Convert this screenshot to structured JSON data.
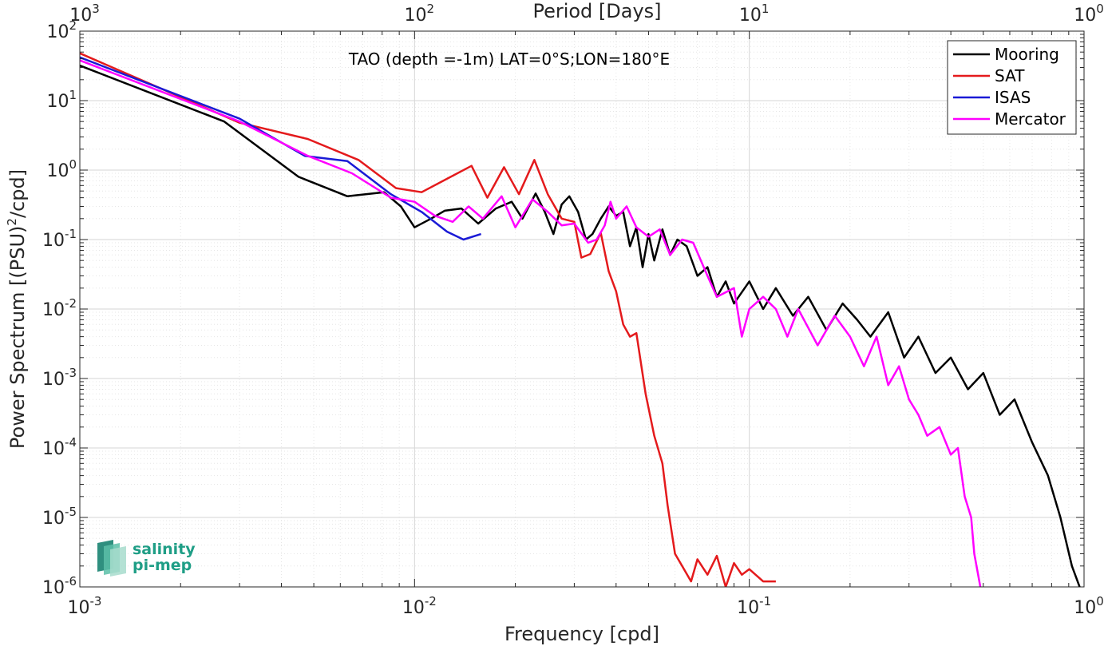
{
  "chart_data": {
    "type": "line",
    "title": "TAO (depth =-1m) LAT=0°S;LON=180°E",
    "xlabel": "Frequency [cpd]",
    "ylabel": "Power Spectrum [(PSU)",
    "ylabel_sup": "2",
    "ylabel_tail": "/cpd]",
    "top_xlabel": "Period [Days]",
    "xscale": "log",
    "yscale": "log",
    "xlim": [
      0.001,
      1
    ],
    "ylim": [
      1e-06,
      100
    ],
    "grid": true,
    "legend_position": "top-right",
    "x_ticks": [
      {
        "value": 0.001,
        "base": "10",
        "exp": "-3"
      },
      {
        "value": 0.01,
        "base": "10",
        "exp": "-2"
      },
      {
        "value": 0.1,
        "base": "10",
        "exp": "-1"
      },
      {
        "value": 1,
        "base": "10",
        "exp": "0"
      }
    ],
    "top_ticks": [
      {
        "value": 0.001,
        "base": "10",
        "exp": "3"
      },
      {
        "value": 0.01,
        "base": "10",
        "exp": "2"
      },
      {
        "value": 0.1,
        "base": "10",
        "exp": "1"
      },
      {
        "value": 1,
        "base": "10",
        "exp": "0"
      }
    ],
    "y_ticks": [
      {
        "value": 100,
        "base": "10",
        "exp": "2"
      },
      {
        "value": 10,
        "base": "10",
        "exp": "1"
      },
      {
        "value": 1,
        "base": "10",
        "exp": "0"
      },
      {
        "value": 0.1,
        "base": "10",
        "exp": "-1"
      },
      {
        "value": 0.01,
        "base": "10",
        "exp": "-2"
      },
      {
        "value": 0.001,
        "base": "10",
        "exp": "-3"
      },
      {
        "value": 0.0001,
        "base": "10",
        "exp": "-4"
      },
      {
        "value": 1e-05,
        "base": "10",
        "exp": "-5"
      },
      {
        "value": 1e-06,
        "base": "10",
        "exp": "-6"
      }
    ],
    "series": [
      {
        "name": "Mooring",
        "color": "#000000",
        "points": [
          [
            0.001,
            32
          ],
          [
            0.0027,
            5
          ],
          [
            0.0045,
            0.8
          ],
          [
            0.0063,
            0.42
          ],
          [
            0.0081,
            0.48
          ],
          [
            0.0091,
            0.3
          ],
          [
            0.01,
            0.15
          ],
          [
            0.0112,
            0.2
          ],
          [
            0.0123,
            0.26
          ],
          [
            0.0138,
            0.28
          ],
          [
            0.0155,
            0.17
          ],
          [
            0.0175,
            0.28
          ],
          [
            0.0195,
            0.35
          ],
          [
            0.021,
            0.2
          ],
          [
            0.023,
            0.46
          ],
          [
            0.0245,
            0.25
          ],
          [
            0.026,
            0.12
          ],
          [
            0.0275,
            0.32
          ],
          [
            0.029,
            0.42
          ],
          [
            0.0308,
            0.25
          ],
          [
            0.0325,
            0.1
          ],
          [
            0.034,
            0.12
          ],
          [
            0.036,
            0.2
          ],
          [
            0.038,
            0.3
          ],
          [
            0.04,
            0.22
          ],
          [
            0.042,
            0.25
          ],
          [
            0.044,
            0.08
          ],
          [
            0.046,
            0.15
          ],
          [
            0.048,
            0.04
          ],
          [
            0.05,
            0.12
          ],
          [
            0.052,
            0.05
          ],
          [
            0.055,
            0.14
          ],
          [
            0.058,
            0.06
          ],
          [
            0.061,
            0.1
          ],
          [
            0.065,
            0.08
          ],
          [
            0.07,
            0.03
          ],
          [
            0.075,
            0.04
          ],
          [
            0.08,
            0.015
          ],
          [
            0.085,
            0.025
          ],
          [
            0.09,
            0.012
          ],
          [
            0.1,
            0.025
          ],
          [
            0.11,
            0.01
          ],
          [
            0.12,
            0.02
          ],
          [
            0.135,
            0.008
          ],
          [
            0.15,
            0.015
          ],
          [
            0.17,
            0.005
          ],
          [
            0.19,
            0.012
          ],
          [
            0.21,
            0.007
          ],
          [
            0.23,
            0.004
          ],
          [
            0.26,
            0.009
          ],
          [
            0.29,
            0.002
          ],
          [
            0.32,
            0.004
          ],
          [
            0.36,
            0.0012
          ],
          [
            0.4,
            0.002
          ],
          [
            0.45,
            0.0007
          ],
          [
            0.5,
            0.0012
          ],
          [
            0.56,
            0.0003
          ],
          [
            0.62,
            0.0005
          ],
          [
            0.7,
            0.00012
          ],
          [
            0.78,
            4e-05
          ],
          [
            0.85,
            1e-05
          ],
          [
            0.92,
            2e-06
          ],
          [
            0.97,
            1e-06
          ]
        ]
      },
      {
        "name": "SAT",
        "color": "#e41a1c",
        "points": [
          [
            0.001,
            48
          ],
          [
            0.003,
            4.8
          ],
          [
            0.0048,
            2.8
          ],
          [
            0.0068,
            1.4
          ],
          [
            0.0088,
            0.55
          ],
          [
            0.0105,
            0.48
          ],
          [
            0.0125,
            0.75
          ],
          [
            0.0148,
            1.15
          ],
          [
            0.0165,
            0.4
          ],
          [
            0.0185,
            1.1
          ],
          [
            0.0205,
            0.45
          ],
          [
            0.0228,
            1.4
          ],
          [
            0.025,
            0.45
          ],
          [
            0.0275,
            0.2
          ],
          [
            0.03,
            0.18
          ],
          [
            0.0315,
            0.055
          ],
          [
            0.0335,
            0.062
          ],
          [
            0.036,
            0.125
          ],
          [
            0.038,
            0.035
          ],
          [
            0.04,
            0.018
          ],
          [
            0.042,
            0.006
          ],
          [
            0.044,
            0.004
          ],
          [
            0.046,
            0.0045
          ],
          [
            0.049,
            0.0006
          ],
          [
            0.052,
            0.00015
          ],
          [
            0.055,
            6e-05
          ],
          [
            0.057,
            1.5e-05
          ],
          [
            0.06,
            3e-06
          ],
          [
            0.063,
            2e-06
          ],
          [
            0.067,
            1.2e-06
          ],
          [
            0.07,
            2.5e-06
          ],
          [
            0.075,
            1.5e-06
          ],
          [
            0.08,
            2.8e-06
          ],
          [
            0.085,
            1e-06
          ],
          [
            0.09,
            2.2e-06
          ],
          [
            0.095,
            1.5e-06
          ],
          [
            0.1,
            1.8e-06
          ],
          [
            0.11,
            1.2e-06
          ],
          [
            0.12,
            1.2e-06
          ]
        ]
      },
      {
        "name": "ISAS",
        "color": "#1a1ad6",
        "points": [
          [
            0.001,
            42
          ],
          [
            0.003,
            5.5
          ],
          [
            0.0047,
            1.6
          ],
          [
            0.0063,
            1.35
          ],
          [
            0.0085,
            0.45
          ],
          [
            0.0105,
            0.25
          ],
          [
            0.0125,
            0.13
          ],
          [
            0.014,
            0.1
          ],
          [
            0.0158,
            0.12
          ]
        ]
      },
      {
        "name": "Mercator",
        "color": "#ff00ff",
        "points": [
          [
            0.001,
            38
          ],
          [
            0.003,
            5
          ],
          [
            0.0048,
            1.6
          ],
          [
            0.0065,
            0.9
          ],
          [
            0.0085,
            0.4
          ],
          [
            0.01,
            0.35
          ],
          [
            0.0115,
            0.22
          ],
          [
            0.013,
            0.18
          ],
          [
            0.0145,
            0.3
          ],
          [
            0.016,
            0.2
          ],
          [
            0.0182,
            0.42
          ],
          [
            0.02,
            0.15
          ],
          [
            0.0225,
            0.38
          ],
          [
            0.025,
            0.25
          ],
          [
            0.0275,
            0.16
          ],
          [
            0.03,
            0.17
          ],
          [
            0.033,
            0.09
          ],
          [
            0.035,
            0.1
          ],
          [
            0.037,
            0.16
          ],
          [
            0.0385,
            0.35
          ],
          [
            0.04,
            0.2
          ],
          [
            0.043,
            0.3
          ],
          [
            0.046,
            0.15
          ],
          [
            0.05,
            0.11
          ],
          [
            0.054,
            0.14
          ],
          [
            0.058,
            0.06
          ],
          [
            0.063,
            0.1
          ],
          [
            0.068,
            0.09
          ],
          [
            0.075,
            0.03
          ],
          [
            0.08,
            0.015
          ],
          [
            0.09,
            0.02
          ],
          [
            0.095,
            0.004
          ],
          [
            0.1,
            0.01
          ],
          [
            0.11,
            0.015
          ],
          [
            0.12,
            0.01
          ],
          [
            0.13,
            0.004
          ],
          [
            0.14,
            0.01
          ],
          [
            0.16,
            0.003
          ],
          [
            0.18,
            0.008
          ],
          [
            0.2,
            0.004
          ],
          [
            0.22,
            0.0015
          ],
          [
            0.24,
            0.004
          ],
          [
            0.26,
            0.0008
          ],
          [
            0.28,
            0.0015
          ],
          [
            0.3,
            0.0005
          ],
          [
            0.32,
            0.0003
          ],
          [
            0.34,
            0.00015
          ],
          [
            0.37,
            0.0002
          ],
          [
            0.4,
            8e-05
          ],
          [
            0.42,
            0.0001
          ],
          [
            0.44,
            2e-05
          ],
          [
            0.46,
            1e-05
          ],
          [
            0.47,
            3e-06
          ],
          [
            0.49,
            1e-06
          ]
        ]
      }
    ]
  },
  "logo": {
    "line1": "salinity",
    "line2": "pi-mep"
  }
}
